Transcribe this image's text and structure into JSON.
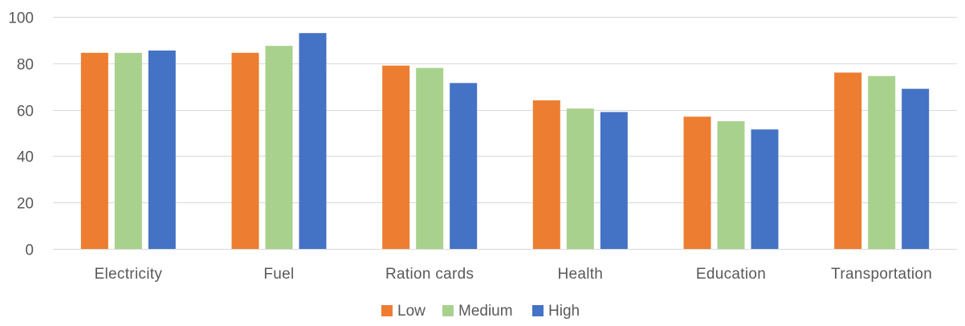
{
  "chart_data": {
    "type": "bar",
    "title": "",
    "xlabel": "",
    "ylabel": "",
    "ylim": [
      0,
      100
    ],
    "yticks": [
      0,
      20,
      40,
      60,
      80,
      100
    ],
    "grid": true,
    "legend_position": "bottom",
    "categories": [
      "Electricity",
      "Fuel",
      "Ration cards",
      "Health",
      "Education",
      "Transportation"
    ],
    "series": [
      {
        "name": "Low",
        "color": "#ED7D31",
        "values": [
          84.5,
          84.5,
          79,
          64,
          57,
          76
        ]
      },
      {
        "name": "Medium",
        "color": "#A9D18E",
        "values": [
          84.5,
          87.5,
          78,
          60.5,
          55,
          74.5
        ]
      },
      {
        "name": "High",
        "color": "#4472C4",
        "values": [
          85.5,
          93,
          71.5,
          59,
          51.5,
          69
        ]
      }
    ]
  }
}
